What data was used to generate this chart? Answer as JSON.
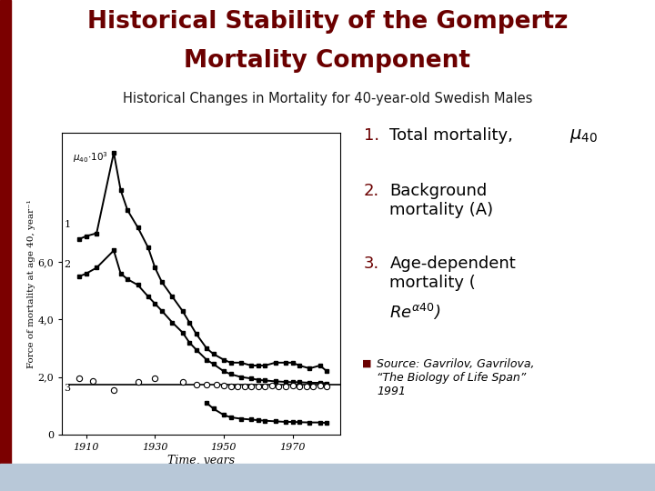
{
  "title_line1": "Historical Stability of the Gompertz",
  "title_line2": "Mortality Component",
  "subtitle": "Historical Changes in Mortality for 40-year-old Swedish Males",
  "title_color": "#6B0000",
  "subtitle_color": "#1a1a1a",
  "bg_color": "#FFFFFF",
  "left_bar_color": "#7B0000",
  "bottom_bar_color": "#B8C8D8",
  "years_total": [
    1908,
    1910,
    1913,
    1918,
    1920,
    1922,
    1925,
    1928,
    1930,
    1932,
    1935,
    1938,
    1940,
    1942,
    1945,
    1947,
    1950,
    1952,
    1955,
    1958,
    1960,
    1962,
    1965,
    1968,
    1970,
    1972,
    1975,
    1978,
    1980
  ],
  "total_mortality": [
    6.8,
    6.9,
    7.0,
    9.8,
    8.5,
    7.8,
    7.2,
    6.5,
    5.8,
    5.3,
    4.8,
    4.3,
    3.9,
    3.5,
    3.0,
    2.8,
    2.6,
    2.5,
    2.5,
    2.4,
    2.4,
    2.4,
    2.5,
    2.5,
    2.5,
    2.4,
    2.3,
    2.4,
    2.2
  ],
  "years_bg": [
    1908,
    1910,
    1913,
    1918,
    1920,
    1922,
    1925,
    1928,
    1930,
    1932,
    1935,
    1938,
    1940,
    1942,
    1945,
    1947,
    1950,
    1952,
    1955,
    1958,
    1960,
    1962,
    1965,
    1968,
    1970,
    1972,
    1975,
    1978,
    1980
  ],
  "bg_mortality": [
    5.5,
    5.6,
    5.8,
    6.4,
    5.6,
    5.4,
    5.2,
    4.8,
    4.55,
    4.3,
    3.9,
    3.55,
    3.2,
    2.95,
    2.6,
    2.45,
    2.2,
    2.1,
    2.0,
    1.95,
    1.9,
    1.88,
    1.85,
    1.83,
    1.82,
    1.82,
    1.8,
    1.8,
    1.78
  ],
  "years_flat": [
    1905,
    1985
  ],
  "flat_line_y": [
    1.72,
    1.72
  ],
  "years_circles": [
    1908,
    1912,
    1918,
    1925,
    1930,
    1938,
    1942,
    1945,
    1948,
    1950,
    1952,
    1954,
    1956,
    1958,
    1960,
    1962,
    1964,
    1966,
    1968,
    1970,
    1972,
    1974,
    1976,
    1978,
    1980
  ],
  "circles_y": [
    1.96,
    1.85,
    1.55,
    1.82,
    1.96,
    1.82,
    1.75,
    1.72,
    1.72,
    1.7,
    1.68,
    1.67,
    1.68,
    1.68,
    1.68,
    1.68,
    1.69,
    1.68,
    1.68,
    1.69,
    1.68,
    1.68,
    1.68,
    1.69,
    1.68
  ],
  "years_agedep": [
    1945,
    1947,
    1950,
    1952,
    1955,
    1958,
    1960,
    1962,
    1965,
    1968,
    1970,
    1972,
    1975,
    1978,
    1980
  ],
  "agedep_mortality": [
    1.1,
    0.9,
    0.68,
    0.6,
    0.55,
    0.52,
    0.5,
    0.48,
    0.46,
    0.44,
    0.44,
    0.43,
    0.42,
    0.42,
    0.4
  ],
  "xlabel": "Time, years",
  "ylabel": "Force of mortality at age 40, year⁻¹",
  "ylim": [
    0,
    10.5
  ],
  "xlim": [
    1903,
    1984
  ],
  "yticks": [
    0,
    2.0,
    4.0,
    6.0
  ],
  "ytick_labels": [
    "0",
    "2,0",
    "4,0",
    "6,0"
  ],
  "xtick_years": [
    1910,
    1930,
    1950,
    1970
  ],
  "xtick_labels": [
    "1910",
    "1930",
    "1950",
    "1970"
  ]
}
